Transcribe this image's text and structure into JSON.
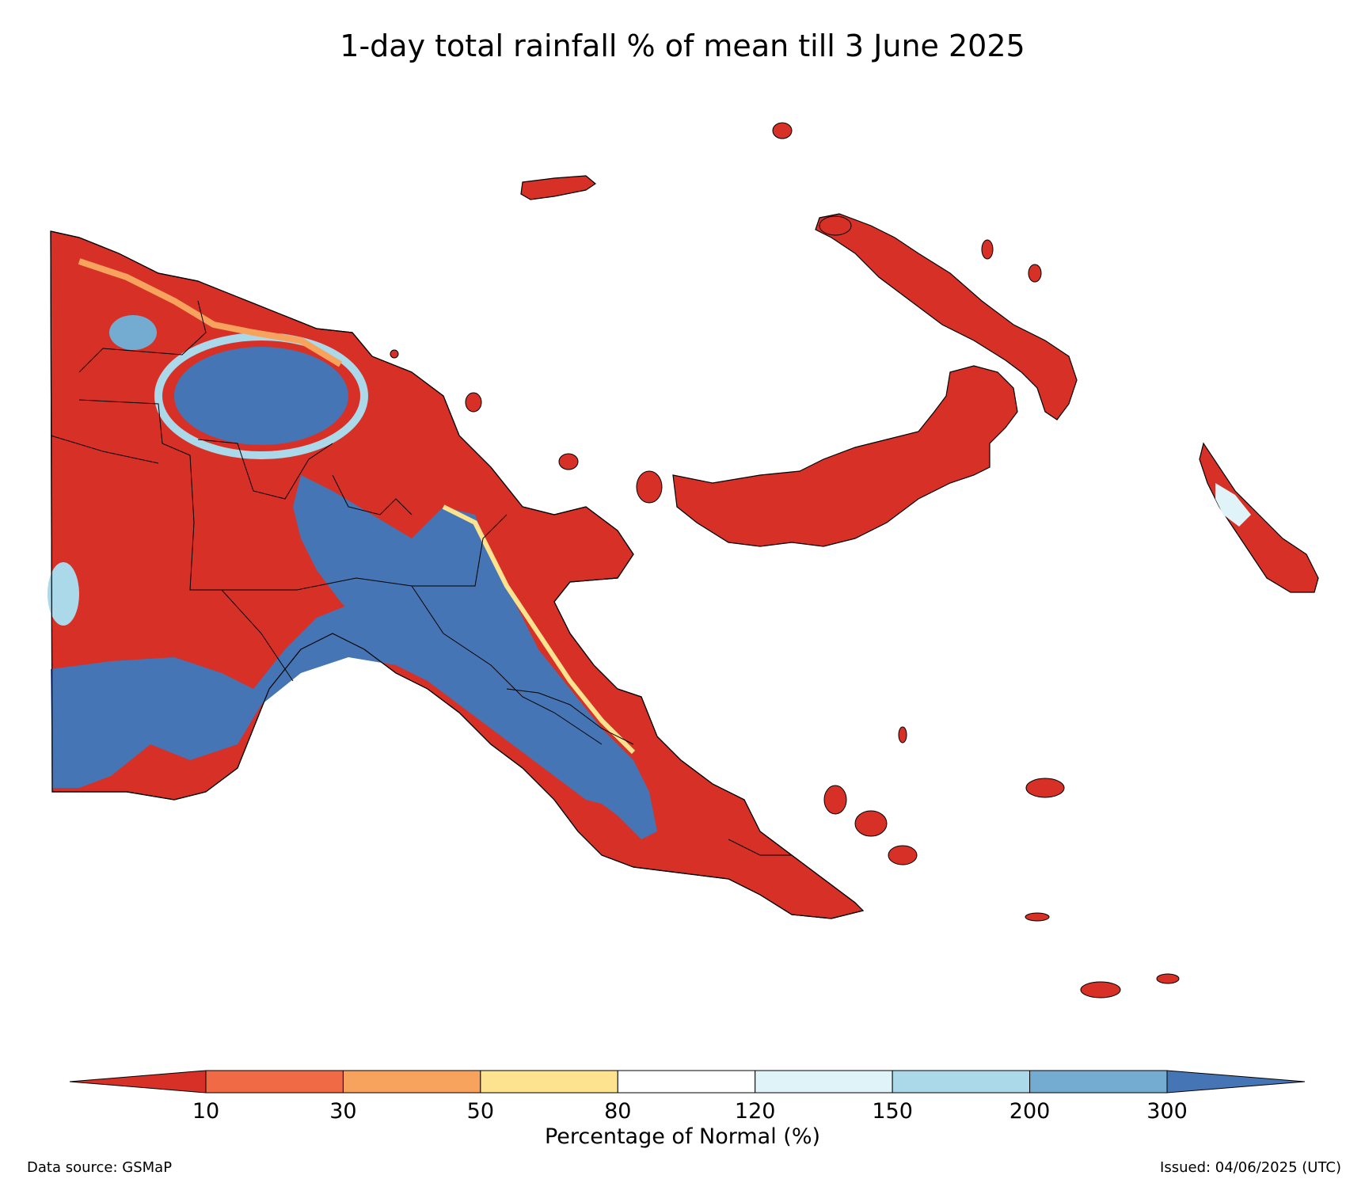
{
  "title": "1-day total rainfall % of mean till 3 June 2025",
  "colorbar": {
    "label": "Percentage of Normal (%)",
    "ticks": [
      "10",
      "30",
      "50",
      "80",
      "120",
      "150",
      "200",
      "300"
    ],
    "colors": [
      "#d73027",
      "#f06b45",
      "#f7a35e",
      "#fde28f",
      "#ffffff",
      "#e0f3f8",
      "#abd9e9",
      "#74acd1",
      "#4575b4"
    ],
    "extend": "both"
  },
  "map": {
    "region": "Papua New Guinea",
    "dominant_category_colors": {
      "below_10": "#d73027",
      "above_300": "#4575b4"
    }
  },
  "footer": {
    "source": "Data source: GSMaP",
    "issued": "Issued: 04/06/2025 (UTC)"
  }
}
